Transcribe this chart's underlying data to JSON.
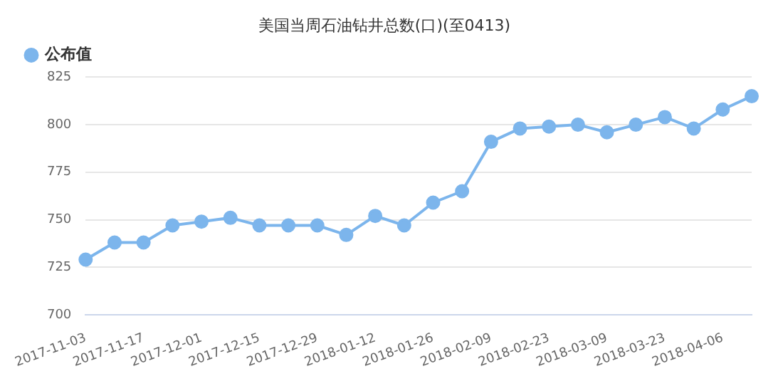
{
  "chart_data": {
    "type": "line",
    "title": "美国当周石油钻井总数(口)(至0413)",
    "categories": [
      "2017-11-03",
      null,
      "2017-11-17",
      null,
      "2017-12-01",
      null,
      "2017-12-15",
      null,
      "2017-12-29",
      null,
      "2018-01-12",
      null,
      "2018-01-26",
      null,
      "2018-02-09",
      null,
      "2018-02-23",
      null,
      "2018-03-09",
      null,
      "2018-03-23",
      null,
      "2018-04-06",
      null
    ],
    "series": [
      {
        "name": "公布值",
        "color": "#7cb5ec",
        "values": [
          729,
          738,
          738,
          747,
          749,
          751,
          747,
          747,
          747,
          742,
          752,
          747,
          759,
          765,
          791,
          798,
          799,
          800,
          796,
          800,
          804,
          798,
          808,
          815
        ]
      }
    ],
    "ylim": [
      700,
      825
    ],
    "yticks": [
      700,
      725,
      750,
      775,
      800,
      825
    ],
    "grid": "y",
    "legend": "top left",
    "marker": "circle",
    "line_style": "solid"
  }
}
